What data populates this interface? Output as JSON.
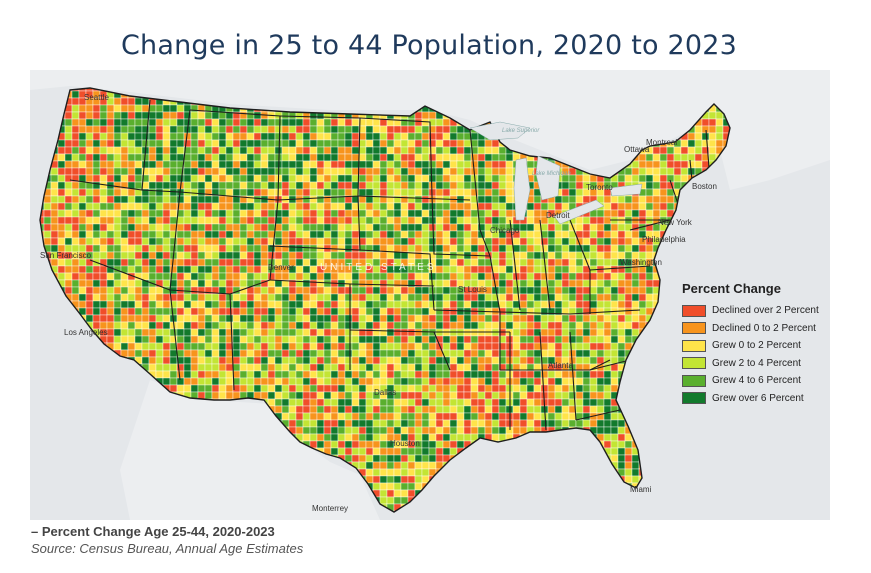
{
  "title": "Change in 25 to 44 Population, 2020 to 2023",
  "caption": "– Percent Change Age 25-44, 2020-2023",
  "source": "Source: Census Bureau, Annual Age Estimates",
  "legend": {
    "title": "Percent Change",
    "items": [
      {
        "label": "Declined over 2 Percent",
        "color": "#f04e2a"
      },
      {
        "label": "Declined 0 to 2 Percent",
        "color": "#f7941d"
      },
      {
        "label": "Grew 0 to 2 Percent",
        "color": "#ffe44a"
      },
      {
        "label": "Grew 2 to 4 Percent",
        "color": "#c3e534"
      },
      {
        "label": "Grew 4 to 6 Percent",
        "color": "#5aaf2e"
      },
      {
        "label": "Grew over 6 Percent",
        "color": "#127a2c"
      }
    ]
  },
  "map": {
    "country_label": "UNITED STATES",
    "cities": [
      "Seattle",
      "San Francisco",
      "Los Angeles",
      "Denver",
      "Dallas",
      "Houston",
      "St Louis",
      "Chicago",
      "Detroit",
      "Atlanta",
      "Miami",
      "Washington",
      "Philadelphia",
      "New York",
      "Boston",
      "Toronto",
      "Ottawa",
      "Montreal",
      "Monterrey"
    ],
    "water_labels": [
      "Lake Superior",
      "Lake Michigan"
    ]
  }
}
